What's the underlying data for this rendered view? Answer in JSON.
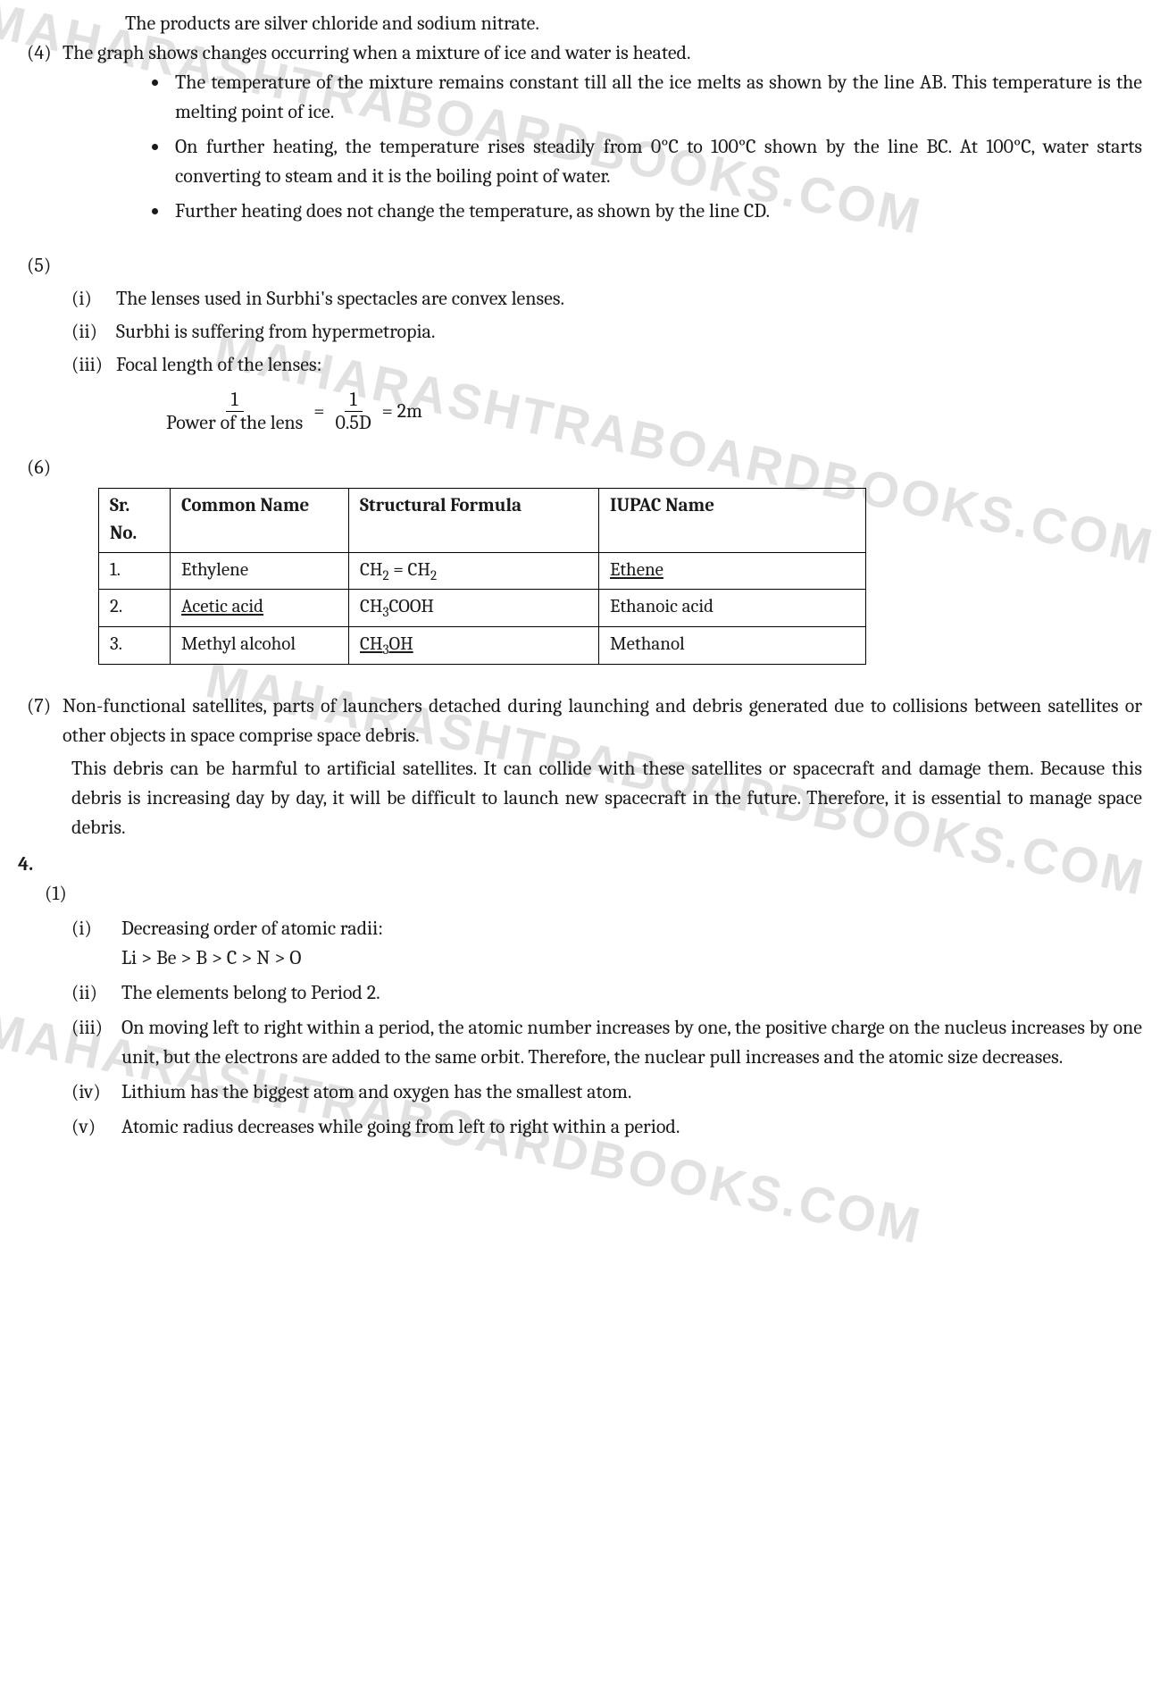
{
  "watermarks": {
    "w1": "MAHARASHTRABOARDBOOKS.COM",
    "w2": "MAHARASHTRABOARDBOOKS.COM",
    "w3": "MAHARASHTRABOARDBOOKS.COM",
    "w4": "MAHARASHTRABOARDBOOKS.COM"
  },
  "intro_line": "The products are silver chloride and sodium nitrate.",
  "q4": {
    "num": "(4)",
    "lead": "The graph shows changes occurring when a mixture of ice and water is heated.",
    "bullets": [
      "The temperature of the mixture remains constant till all the ice melts as shown by the line AB. This temperature is the melting point of ice.",
      "On further heating, the temperature rises steadily from 0°C to 100°C shown by the line BC. At 100°C, water starts converting to steam and it is the boiling point of water.",
      "Further heating does not change the temperature, as shown by the line CD."
    ]
  },
  "q5": {
    "num": "(5)",
    "i_roman": "(i)",
    "i_txt": "The lenses used in Surbhi's spectacles are convex lenses.",
    "ii_roman": "(ii)",
    "ii_txt": "Surbhi is suffering from hypermetropia.",
    "iii_roman": "(iii)",
    "iii_txt": "Focal length of the lenses:",
    "frac_top1": "1",
    "frac_bot1": "Power of the lens",
    "eq1": "=",
    "frac_top2": "1",
    "frac_bot2": "0.5D",
    "eq2": "= 2m"
  },
  "q6": {
    "num": "(6)",
    "headers": {
      "c1": "Sr. No.",
      "c2": "Common Name",
      "c3": "Structural Formula",
      "c4": "IUPAC Name"
    },
    "rows": [
      {
        "no": "1.",
        "common": "Ethylene",
        "formula_html": "CH<span class='sub'>2</span> = CH<span class='sub'>2</span>",
        "iupac": "Ethene",
        "iupac_underline": true
      },
      {
        "no": "2.",
        "common": "Acetic acid",
        "common_underline": true,
        "formula_html": "CH<span class='sub'>3</span>COOH",
        "iupac": "Ethanoic acid"
      },
      {
        "no": "3.",
        "common": "Methyl alcohol",
        "formula_html": "<span class='underline'>CH<span class='sub'>3</span>OH</span>",
        "iupac": "Methanol"
      }
    ]
  },
  "q7": {
    "num": "(7)",
    "p1": "Non-functional satellites, parts of launchers detached during launching and debris generated due to collisions between satellites or other objects in space comprise space debris.",
    "p2": "This debris can be harmful to artificial satellites. It can collide with these satellites or spacecraft and damage them. Because this debris is increasing day by day, it will be difficult to launch new spacecraft in the future. Therefore, it is essential to manage space debris."
  },
  "sec4": {
    "label": "4.",
    "sub1": "(1)",
    "i_roman": "(i)",
    "i_txt": "Decreasing order of atomic radii:",
    "i_order": "Li > Be > B > C > N > O",
    "ii_roman": "(ii)",
    "ii_txt": "The elements belong to Period 2.",
    "iii_roman": "(iii)",
    "iii_txt": "On moving left to right within a period, the atomic number increases by one, the positive charge on the nucleus increases by one unit, but the electrons are added to the same orbit. Therefore, the nuclear pull increases and the atomic size decreases.",
    "iv_roman": "(iv)",
    "iv_txt": "Lithium has the biggest atom and oxygen has the smallest atom.",
    "v_roman": "(v)",
    "v_txt": "Atomic radius decreases while going from left to right within a period."
  }
}
